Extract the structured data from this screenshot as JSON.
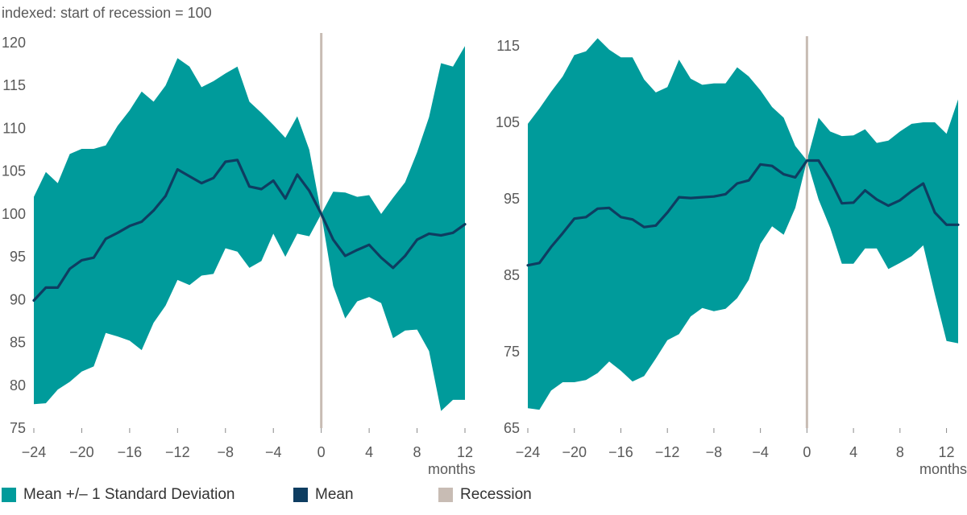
{
  "subtitle": "indexed: start of recession = 100",
  "colors": {
    "band": "#009b9b",
    "mean": "#0e3d61",
    "recession": "#c8bcb4",
    "tick_text": "#595959"
  },
  "legend": [
    {
      "label": "Mean +/– 1 Standard Deviation",
      "color": "#009b9b"
    },
    {
      "label": "Mean",
      "color": "#0e3d61"
    },
    {
      "label": "Recession",
      "color": "#c8bcb4"
    }
  ],
  "chart_data": [
    {
      "type": "area",
      "xlabel": "months",
      "x": [
        -24,
        -23,
        -22,
        -21,
        -20,
        -19,
        -18,
        -17,
        -16,
        -15,
        -14,
        -13,
        -12,
        -11,
        -10,
        -9,
        -8,
        -7,
        -6,
        -5,
        -4,
        -3,
        -2,
        -1,
        0,
        1,
        2,
        3,
        4,
        5,
        6,
        7,
        8,
        9,
        10,
        11,
        12
      ],
      "xlim": [
        -24,
        12
      ],
      "ylim": [
        75,
        120
      ],
      "xticks": [
        -24,
        -20,
        -16,
        -12,
        -8,
        -4,
        0,
        4,
        8,
        12
      ],
      "xtick_labels": [
        "−24",
        "−20",
        "−16",
        "−12",
        "−8",
        "−4",
        "0",
        "4",
        "8",
        "12"
      ],
      "yticks": [
        75,
        80,
        85,
        90,
        95,
        100,
        105,
        110,
        115,
        120
      ],
      "recession_x": 0,
      "series": [
        {
          "name": "Mean +/– 1 Standard Deviation",
          "kind": "band",
          "upper": [
            102,
            104.9,
            103.6,
            107,
            107.6,
            107.6,
            108,
            110.3,
            112.1,
            114.3,
            113.1,
            115,
            118.2,
            117.2,
            114.8,
            115.5,
            116.4,
            117.2,
            113.1,
            111.8,
            110.4,
            108.9,
            111.4,
            107.5,
            100,
            102.6,
            102.5,
            102,
            102.2,
            100,
            101.9,
            103.7,
            107.2,
            111.3,
            117.6,
            117.2,
            119.6
          ],
          "lower": [
            77.8,
            77.9,
            79.5,
            80.4,
            81.6,
            82.2,
            86.1,
            85.7,
            85.2,
            84.1,
            87.3,
            89.3,
            92.3,
            91.7,
            92.8,
            93,
            96,
            95.6,
            93.7,
            94.5,
            97.7,
            95,
            97.7,
            97.4,
            100,
            91.6,
            87.8,
            89.8,
            90.3,
            89.6,
            85.5,
            86.4,
            86.5,
            84,
            77,
            78.3,
            78.3
          ]
        },
        {
          "name": "Mean",
          "kind": "line",
          "values": [
            89.9,
            91.4,
            91.4,
            93.6,
            94.6,
            94.9,
            97.1,
            97.8,
            98.6,
            99.1,
            100.4,
            102.1,
            105.2,
            104.4,
            103.6,
            104.2,
            106.1,
            106.3,
            103.2,
            102.9,
            103.9,
            101.8,
            104.6,
            102.7,
            100,
            97,
            95.1,
            95.8,
            96.4,
            94.9,
            93.7,
            95.1,
            97,
            97.7,
            97.5,
            97.8,
            98.8
          ]
        }
      ]
    },
    {
      "type": "area",
      "xlabel": "months",
      "x": [
        -24,
        -23,
        -22,
        -21,
        -20,
        -19,
        -18,
        -17,
        -16,
        -15,
        -14,
        -13,
        -12,
        -11,
        -10,
        -9,
        -8,
        -7,
        -6,
        -5,
        -4,
        -3,
        -2,
        -1,
        0,
        1,
        2,
        3,
        4,
        5,
        6,
        7,
        8,
        9,
        10,
        11,
        12,
        13
      ],
      "xlim": [
        -24,
        13
      ],
      "ylim": [
        65,
        115
      ],
      "xticks": [
        -24,
        -20,
        -16,
        -12,
        -8,
        -4,
        0,
        4,
        8,
        12
      ],
      "xtick_labels": [
        "−24",
        "−20",
        "−16",
        "−12",
        "−8",
        "−4",
        "0",
        "4",
        "8",
        "12"
      ],
      "yticks": [
        65,
        75,
        85,
        95,
        105,
        115
      ],
      "recession_x": 0,
      "series": [
        {
          "name": "Mean +/– 1 Standard Deviation",
          "kind": "band",
          "upper": [
            104.8,
            106.8,
            109,
            111,
            113.8,
            114.3,
            116,
            114.5,
            113.5,
            113.5,
            110.6,
            108.9,
            109.6,
            113.2,
            110.7,
            109.9,
            110.1,
            110.1,
            112.2,
            111,
            109.2,
            107,
            105.6,
            101.9,
            100,
            105.6,
            103.8,
            103.2,
            103.3,
            104.1,
            102.3,
            102.6,
            103.8,
            104.8,
            105,
            105,
            103.5,
            108
          ],
          "lower": [
            67.6,
            67.4,
            69.9,
            71,
            71,
            71.3,
            72.2,
            73.7,
            72.5,
            71.1,
            71.8,
            74.1,
            76.5,
            77.3,
            79.6,
            80.7,
            80.3,
            80.6,
            82,
            84.4,
            89.1,
            91.4,
            90.3,
            93.8,
            100,
            94.9,
            91.2,
            86.5,
            86.5,
            88.5,
            88.5,
            85.8,
            86.6,
            87.5,
            88.9,
            82.5,
            76.4,
            76.1
          ]
        },
        {
          "name": "Mean",
          "kind": "line",
          "values": [
            86.3,
            86.6,
            88.7,
            90.5,
            92.4,
            92.6,
            93.7,
            93.8,
            92.6,
            92.3,
            91.3,
            91.5,
            93.2,
            95.2,
            95.1,
            95.2,
            95.3,
            95.6,
            97,
            97.4,
            99.5,
            99.3,
            98.2,
            97.8,
            100,
            100,
            97.5,
            94.4,
            94.5,
            96.1,
            94.9,
            94.1,
            94.8,
            96,
            97,
            93.2,
            91.6,
            91.6
          ]
        }
      ]
    }
  ]
}
